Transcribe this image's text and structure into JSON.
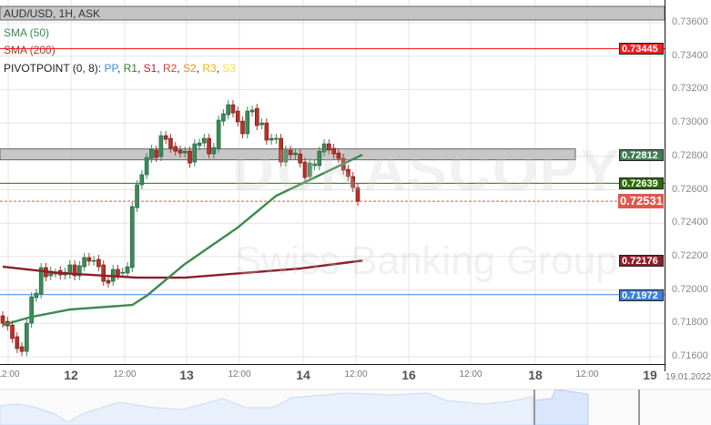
{
  "header": {
    "instrument": "AUD/USD, 1H, ASK"
  },
  "legend": {
    "sma50": "SMA (50)",
    "sma200": "SMA (200)",
    "pivot_prefix": "PIVOTPOINT (0, 8):",
    "pivot_items": [
      {
        "label": "PP",
        "color": "#3a8ee6"
      },
      {
        "label": "R1",
        "color": "#2e7d32"
      },
      {
        "label": "S1",
        "color": "#b22234"
      },
      {
        "label": "R2",
        "color": "#e53935"
      },
      {
        "label": "S2",
        "color": "#f5892a"
      },
      {
        "label": "R3",
        "color": "#f2b600"
      },
      {
        "label": "S3",
        "color": "#f7e12a"
      }
    ]
  },
  "watermark": {
    "brand": "DUKASCOPY",
    "tagline": "Swiss Banking Group"
  },
  "chart_data": {
    "type": "candlestick",
    "ylim": [
      0.7154,
      0.7378
    ],
    "yticks": [
      "0.73600",
      "0.73400",
      "0.73200",
      "0.73000",
      "0.72800",
      "0.72600",
      "0.72400",
      "0.72200",
      "0.72000",
      "0.71800",
      "0.71600"
    ],
    "xticks": [
      {
        "label": "12:00",
        "major": false
      },
      {
        "label": "12",
        "major": true
      },
      {
        "label": "12:00",
        "major": false
      },
      {
        "label": "13",
        "major": true
      },
      {
        "label": "12:00",
        "major": false
      },
      {
        "label": "14",
        "major": true
      },
      {
        "label": "12:00",
        "major": false
      },
      {
        "label": "16",
        "major": true
      },
      {
        "label": "12:00",
        "major": false
      },
      {
        "label": "18",
        "major": true
      },
      {
        "label": "12:00",
        "major": false
      },
      {
        "label": "19",
        "major": true
      }
    ],
    "date_label": "19.01.2022",
    "grid": true,
    "candles_open_close": [
      [
        0.71845,
        0.71801
      ],
      [
        0.71812,
        0.71785
      ],
      [
        0.7179,
        0.71709
      ],
      [
        0.7172,
        0.71649
      ],
      [
        0.7166,
        0.71632
      ],
      [
        0.71632,
        0.71801
      ],
      [
        0.71801,
        0.71959
      ],
      [
        0.71954,
        0.71981
      ],
      [
        0.71976,
        0.72134
      ],
      [
        0.72134,
        0.72079
      ],
      [
        0.72085,
        0.72112
      ],
      [
        0.72101,
        0.72101
      ],
      [
        0.72117,
        0.7209
      ],
      [
        0.7209,
        0.72106
      ],
      [
        0.72096,
        0.7215
      ],
      [
        0.7215,
        0.72085
      ],
      [
        0.72085,
        0.72145
      ],
      [
        0.72139,
        0.72194
      ],
      [
        0.72194,
        0.72172
      ],
      [
        0.72172,
        0.72177
      ],
      [
        0.72183,
        0.72139
      ],
      [
        0.7215,
        0.72052
      ],
      [
        0.72057,
        0.72041
      ],
      [
        0.72052,
        0.72123
      ],
      [
        0.72123,
        0.7209
      ],
      [
        0.72101,
        0.72106
      ],
      [
        0.72101,
        0.72139
      ],
      [
        0.72134,
        0.72499
      ],
      [
        0.72493,
        0.7263
      ],
      [
        0.7263,
        0.7269
      ],
      [
        0.7269,
        0.72793
      ],
      [
        0.72788,
        0.72842
      ],
      [
        0.72837,
        0.72793
      ],
      [
        0.72799,
        0.72924
      ],
      [
        0.72924,
        0.72902
      ],
      [
        0.72908,
        0.72848
      ],
      [
        0.72859,
        0.72831
      ],
      [
        0.72837,
        0.7282
      ],
      [
        0.7282,
        0.72831
      ],
      [
        0.72831,
        0.7276
      ],
      [
        0.72766,
        0.72875
      ],
      [
        0.72864,
        0.7288
      ],
      [
        0.7288,
        0.72908
      ],
      [
        0.72908,
        0.72815
      ],
      [
        0.72815,
        0.72853
      ],
      [
        0.72848,
        0.73017
      ],
      [
        0.73011,
        0.73055
      ],
      [
        0.73049,
        0.73109
      ],
      [
        0.73109,
        0.7306
      ],
      [
        0.73071,
        0.73006
      ],
      [
        0.73011,
        0.72935
      ],
      [
        0.72935,
        0.73071
      ],
      [
        0.73066,
        0.73077
      ],
      [
        0.73087,
        0.72984
      ],
      [
        0.72989,
        0.73
      ],
      [
        0.73,
        0.72897
      ],
      [
        0.72897,
        0.72908
      ],
      [
        0.72902,
        0.72908
      ],
      [
        0.72908,
        0.72766
      ],
      [
        0.72766,
        0.72837
      ],
      [
        0.72837,
        0.7281
      ],
      [
        0.7281,
        0.7282
      ],
      [
        0.72815,
        0.7276
      ],
      [
        0.72766,
        0.72673
      ],
      [
        0.72679,
        0.7276
      ],
      [
        0.72744,
        0.72755
      ],
      [
        0.72744,
        0.72831
      ],
      [
        0.72826,
        0.72875
      ],
      [
        0.72875,
        0.72837
      ],
      [
        0.72848,
        0.72815
      ],
      [
        0.7282,
        0.72788
      ],
      [
        0.72788,
        0.72717
      ],
      [
        0.72722,
        0.72679
      ],
      [
        0.72679,
        0.72613
      ],
      [
        0.72613,
        0.72531
      ]
    ],
    "sma50": [
      [
        0,
        0.7179
      ],
      [
        6,
        0.71839
      ],
      [
        14,
        0.71883
      ],
      [
        27,
        0.7191
      ],
      [
        30,
        0.71965
      ],
      [
        38,
        0.72156
      ],
      [
        49,
        0.72374
      ],
      [
        57,
        0.72564
      ],
      [
        65,
        0.72673
      ],
      [
        75,
        0.7281
      ]
    ],
    "sma200": [
      [
        0,
        0.72139
      ],
      [
        12,
        0.72101
      ],
      [
        28,
        0.72074
      ],
      [
        38,
        0.72074
      ],
      [
        50,
        0.72101
      ],
      [
        62,
        0.72128
      ],
      [
        75,
        0.72176
      ]
    ],
    "colors": {
      "up": "#3c8a5a",
      "down": "#b8322a",
      "sma50": "#3c8a4e",
      "sma200": "#8b1f2a"
    }
  },
  "levels": [
    {
      "value": "0.73445",
      "color": "#ff1a1a",
      "style": "solid"
    },
    {
      "value": "0.72812",
      "color": "#3f7d55",
      "style": "band"
    },
    {
      "value": "0.72639",
      "color": "#2d6a0a",
      "style": "solid"
    },
    {
      "value": "0.72531",
      "color": "#e0584a",
      "style": "dashed"
    },
    {
      "value": "0.72176",
      "color": "#8b1f2a",
      "style": "none"
    },
    {
      "value": "0.71972",
      "color": "#3a7fe0",
      "style": "solid"
    }
  ]
}
